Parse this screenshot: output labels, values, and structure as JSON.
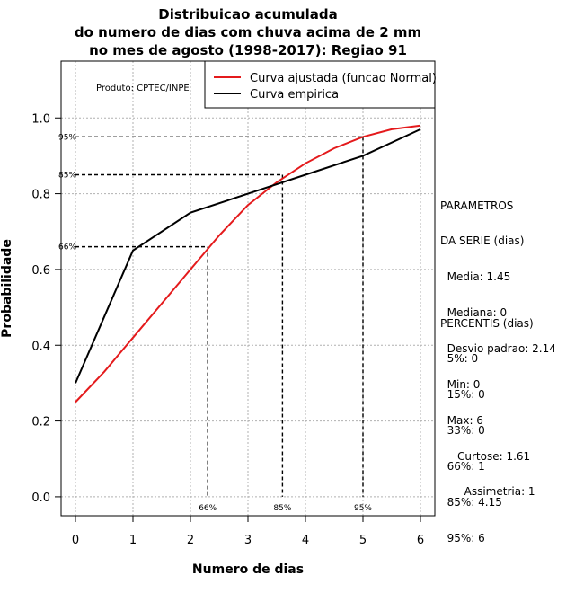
{
  "chart_data": {
    "type": "line",
    "title": [
      "Distribuicao acumulada",
      "do numero de dias com chuva acima de 2 mm",
      "no mes de agosto (1998-2017): Regiao 91"
    ],
    "xlabel": "Numero de dias",
    "ylabel": "Probabilidade",
    "xlim": [
      -0.25,
      6.25
    ],
    "ylim": [
      -0.05,
      1.15
    ],
    "x_ticks": [
      "0",
      "1",
      "2",
      "3",
      "4",
      "5",
      "6"
    ],
    "y_ticks": [
      "0.0",
      "0.2",
      "0.4",
      "0.6",
      "0.8",
      "1.0"
    ],
    "grid": true,
    "product_label": "Produto: CPTEC/INPE",
    "legend": {
      "position": "top-right",
      "entries": [
        {
          "label": "Curva ajustada (funcao Normal)",
          "color": "#e41a1c"
        },
        {
          "label": "Curva empirica",
          "color": "#000000"
        }
      ]
    },
    "series": [
      {
        "name": "Curva ajustada (funcao Normal)",
        "color": "#e41a1c",
        "x": [
          0,
          0.5,
          1,
          1.5,
          2,
          2.5,
          3,
          3.5,
          4,
          4.5,
          5,
          5.5,
          6
        ],
        "y": [
          0.25,
          0.33,
          0.42,
          0.51,
          0.6,
          0.69,
          0.77,
          0.83,
          0.88,
          0.92,
          0.95,
          0.97,
          0.98
        ]
      },
      {
        "name": "Curva empirica",
        "color": "#000000",
        "x": [
          0,
          1,
          2,
          3,
          4,
          5,
          6
        ],
        "y": [
          0.3,
          0.65,
          0.75,
          0.8,
          0.85,
          0.9,
          0.97
        ]
      }
    ],
    "percentile_markers": [
      {
        "label": "66%",
        "x": 2.3,
        "y": 0.66
      },
      {
        "label": "85%",
        "x": 3.6,
        "y": 0.85
      },
      {
        "label": "95%",
        "x": 5.0,
        "y": 0.95
      }
    ]
  },
  "side_panel": {
    "parametros": [
      "PARAMETROS",
      "DA SERIE (dias)",
      "  Media: 1.45",
      "  Mediana: 0",
      "  Desvio padrao: 2.14",
      "  Min: 0",
      "  Max: 6"
    ],
    "percentis": [
      "PERCENTIS (dias)",
      "  5%: 0",
      "  15%: 0",
      "  33%: 0",
      "  66%: 1",
      "  85%: 4.15",
      "  95%: 6"
    ],
    "curtose": "Curtose: 1.61",
    "assimetria": "  Assimetria: 1"
  }
}
